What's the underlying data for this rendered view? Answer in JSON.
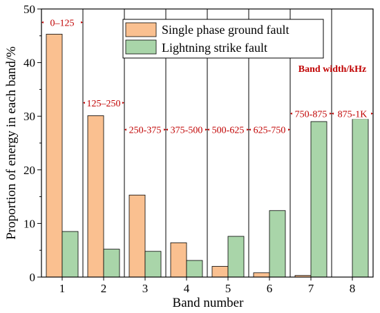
{
  "chart_data": {
    "type": "bar",
    "categories": [
      "1",
      "2",
      "3",
      "4",
      "5",
      "6",
      "7",
      "8"
    ],
    "series": [
      {
        "name": "Single phase ground fault",
        "values": [
          45.3,
          30.1,
          15.3,
          6.4,
          2.0,
          0.8,
          0.3,
          0.0
        ]
      },
      {
        "name": "Lightning strike fault",
        "values": [
          8.5,
          5.2,
          4.8,
          3.1,
          7.6,
          12.4,
          29.0,
          29.5
        ]
      }
    ],
    "xlabel": "Band number",
    "ylabel": "Proportion of energy in each band/%",
    "ylim": [
      0,
      50
    ],
    "yticks": [
      0,
      10,
      20,
      30,
      40,
      50
    ],
    "grid": false,
    "legend_position": "top-right",
    "colors": {
      "series1": "#fac090",
      "series2": "#a9d5a9",
      "annotation": "#c00000"
    },
    "band_annotation_title": "Band width/kHz",
    "band_annotations": [
      {
        "label": "0–125",
        "band": 1,
        "y": 47.5
      },
      {
        "label": "125–250",
        "band": 2,
        "y": 32.5
      },
      {
        "label": "250-375",
        "band": 3,
        "y": 27.5
      },
      {
        "label": "375-500",
        "band": 4,
        "y": 27.5
      },
      {
        "label": "500-625",
        "band": 5,
        "y": 27.5
      },
      {
        "label": "625-750",
        "band": 6,
        "y": 27.5
      },
      {
        "label": "750-875",
        "band": 7,
        "y": 30.5
      },
      {
        "label": "875-1K",
        "band": 8,
        "y": 30.5
      }
    ]
  }
}
